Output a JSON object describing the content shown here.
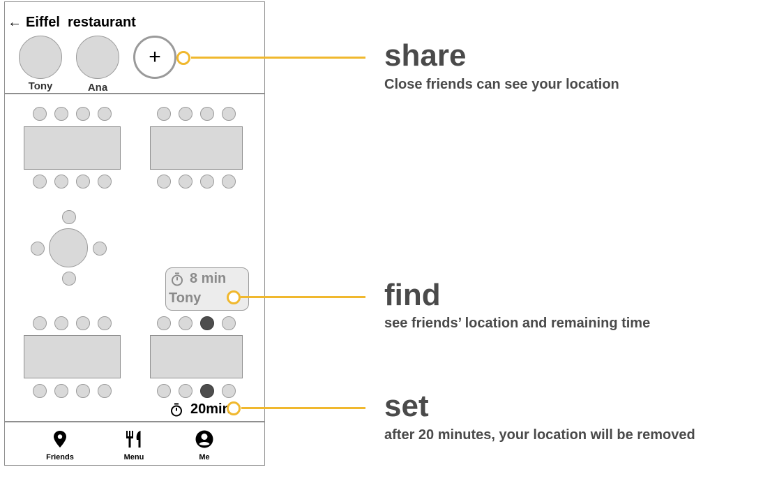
{
  "header": {
    "back_glyph": "←",
    "title": "Eiffel  restaurant"
  },
  "friends": [
    {
      "name": "Tony"
    },
    {
      "name": "Ana"
    }
  ],
  "add_button": {
    "glyph": "+"
  },
  "bubble": {
    "time": "8 min",
    "name": "Tony"
  },
  "my_timer": {
    "value": "20min"
  },
  "nav": {
    "items": [
      {
        "label": "Friends",
        "icon": "location-pin-icon"
      },
      {
        "label": "Menu",
        "icon": "fork-knife-icon"
      },
      {
        "label": "Me",
        "icon": "user-icon"
      }
    ]
  },
  "annotations": [
    {
      "title": "share",
      "subtitle": "Close friends can see your location"
    },
    {
      "title": "find",
      "subtitle": "see friends’ location and remaining time"
    },
    {
      "title": "set",
      "subtitle": "after 20 minutes, your location will be removed"
    }
  ],
  "colors": {
    "accent": "#f0b82e",
    "seat_taken": "#4d4d4d",
    "seat_free": "#d9d9d9"
  }
}
